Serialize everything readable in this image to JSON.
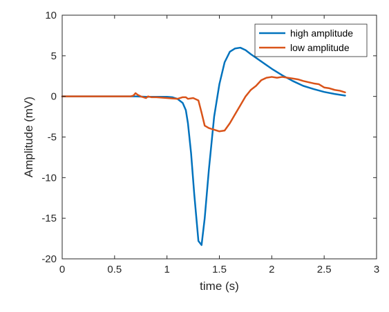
{
  "chart_data": {
    "type": "line",
    "title": "",
    "xlabel": "time (s)",
    "ylabel": "Amplitude (mV)",
    "xlim": [
      0,
      3
    ],
    "ylim": [
      -20,
      10
    ],
    "xticks": [
      0,
      0.5,
      1,
      1.5,
      2,
      2.5,
      3
    ],
    "xtick_labels": [
      "0",
      "0.5",
      "1",
      "1.5",
      "2",
      "2.5",
      "3"
    ],
    "yticks": [
      -20,
      -15,
      -10,
      -5,
      0,
      5,
      10
    ],
    "ytick_labels": [
      "-20",
      "-15",
      "-10",
      "-5",
      "0",
      "5",
      "10"
    ],
    "grid": false,
    "legend_position": "top-right",
    "series": [
      {
        "name": "high amplitude",
        "color": "#0072BD",
        "x": [
          0,
          0.5,
          0.7,
          0.8,
          0.9,
          1.0,
          1.05,
          1.1,
          1.15,
          1.18,
          1.2,
          1.23,
          1.26,
          1.3,
          1.33,
          1.36,
          1.4,
          1.45,
          1.5,
          1.55,
          1.6,
          1.65,
          1.7,
          1.75,
          1.8,
          1.9,
          2.0,
          2.1,
          2.2,
          2.3,
          2.4,
          2.5,
          2.6,
          2.7
        ],
        "y": [
          0,
          0,
          0,
          -0.05,
          -0.05,
          -0.05,
          -0.1,
          -0.3,
          -0.8,
          -1.7,
          -3.3,
          -7,
          -12,
          -17.8,
          -18.3,
          -15,
          -9,
          -2.5,
          1.5,
          4.2,
          5.5,
          5.9,
          6.0,
          5.7,
          5.2,
          4.3,
          3.4,
          2.6,
          1.9,
          1.3,
          0.9,
          0.55,
          0.3,
          0.1
        ]
      },
      {
        "name": "low amplitude",
        "color": "#D95319",
        "x": [
          0,
          0.5,
          0.65,
          0.68,
          0.7,
          0.72,
          0.75,
          0.8,
          0.82,
          0.85,
          0.9,
          1.0,
          1.05,
          1.1,
          1.15,
          1.18,
          1.2,
          1.25,
          1.3,
          1.33,
          1.36,
          1.4,
          1.45,
          1.5,
          1.55,
          1.6,
          1.65,
          1.7,
          1.75,
          1.8,
          1.85,
          1.9,
          1.95,
          2.0,
          2.05,
          2.1,
          2.15,
          2.2,
          2.25,
          2.3,
          2.4,
          2.45,
          2.5,
          2.55,
          2.6,
          2.65,
          2.7
        ],
        "y": [
          0,
          0,
          0,
          0.1,
          0.4,
          0.2,
          0,
          -0.2,
          0,
          -0.1,
          -0.1,
          -0.2,
          -0.25,
          -0.3,
          -0.1,
          -0.1,
          -0.3,
          -0.2,
          -0.5,
          -2,
          -3.6,
          -3.9,
          -4.1,
          -4.3,
          -4.2,
          -3.3,
          -2.2,
          -1.1,
          0,
          0.8,
          1.3,
          2,
          2.3,
          2.4,
          2.3,
          2.4,
          2.3,
          2.2,
          2.1,
          1.9,
          1.6,
          1.5,
          1.1,
          1,
          0.8,
          0.7,
          0.5
        ]
      }
    ]
  }
}
